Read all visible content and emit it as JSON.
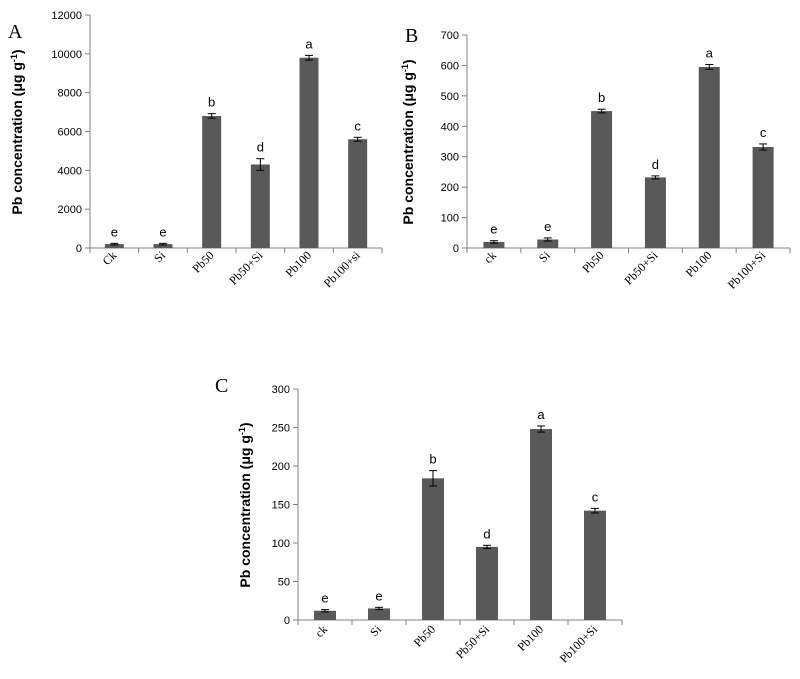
{
  "chart_data": [
    {
      "type": "bar",
      "panel": "A",
      "ylabel": "Pb concentration  (μg g-1)",
      "categories": [
        "Ck",
        "Si",
        "Pb50",
        "Pb50+Si",
        "Pb100",
        "Pb100+si"
      ],
      "values": [
        200,
        200,
        6800,
        4300,
        9800,
        5600
      ],
      "errors": [
        40,
        40,
        120,
        300,
        120,
        100
      ],
      "significance": [
        "e",
        "e",
        "b",
        "d",
        "a",
        "c"
      ],
      "ylim": [
        0,
        12000
      ],
      "yticks": [
        0,
        2000,
        4000,
        6000,
        8000,
        10000,
        12000
      ]
    },
    {
      "type": "bar",
      "panel": "B",
      "ylabel": "Pb concentration  (μg g-1)",
      "categories": [
        "ck",
        "Si",
        "Pb50",
        "Pb50+Si",
        "Pb100",
        "Pb100+Si"
      ],
      "values": [
        20,
        28,
        450,
        232,
        595,
        332
      ],
      "errors": [
        4,
        5,
        6,
        5,
        8,
        10
      ],
      "significance": [
        "e",
        "e",
        "b",
        "d",
        "a",
        "c"
      ],
      "ylim": [
        0,
        700
      ],
      "yticks": [
        0,
        100,
        200,
        300,
        400,
        500,
        600,
        700
      ]
    },
    {
      "type": "bar",
      "panel": "C",
      "ylabel": "Pb concentration  (μg g-1)",
      "categories": [
        "ck",
        "Si",
        "Pb50",
        "Pb50+Si",
        "Pb100",
        "Pb100+Si"
      ],
      "values": [
        12,
        15,
        184,
        95,
        248,
        142
      ],
      "errors": [
        1.5,
        1.5,
        10,
        2,
        4,
        3
      ],
      "significance": [
        "e",
        "e",
        "b",
        "d",
        "a",
        "c"
      ],
      "ylim": [
        0,
        300
      ],
      "yticks": [
        0,
        50,
        100,
        150,
        200,
        250,
        300
      ]
    }
  ]
}
